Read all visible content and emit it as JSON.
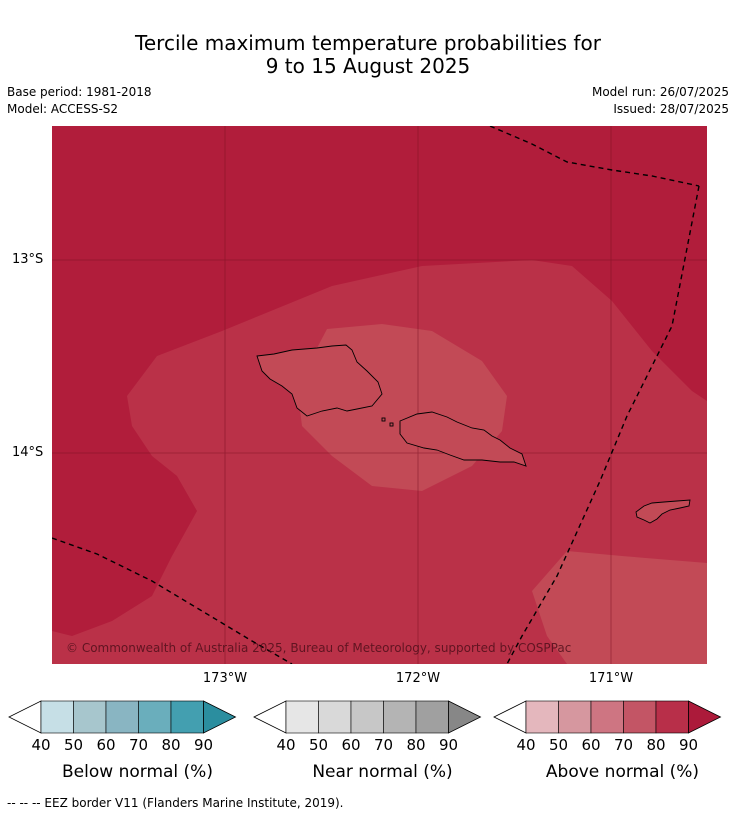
{
  "title": {
    "line1": "Tercile maximum temperature probabilities for",
    "line2": "9 to 15 August 2025"
  },
  "meta": {
    "base_period": "Base period: 1981-2018",
    "model": "Model: ACCESS-S2",
    "model_run": "Model run: 26/07/2025",
    "issued": "Issued: 28/07/2025"
  },
  "map": {
    "lat_labels": [
      "13°S",
      "14°S"
    ],
    "lon_labels": [
      "173°W",
      "172°W",
      "171°W"
    ],
    "copyright": "© Commonwealth of Australia 2025, Bureau of Meteorology, supported by COSPPac",
    "colors": {
      "above_90": "#b11d3b",
      "above_80": "#ba3148",
      "above_70": "#c24a56",
      "ocean_grid": "#7a1022"
    }
  },
  "colorbars": [
    {
      "label": "Below normal (%)",
      "ticks": [
        "40",
        "50",
        "60",
        "70",
        "80",
        "90"
      ],
      "colors": [
        "#c6dfe6",
        "#a7c6cd",
        "#89b5c2",
        "#6aaebc",
        "#439fb0",
        "#2b8e9f"
      ]
    },
    {
      "label": "Near normal (%)",
      "ticks": [
        "40",
        "50",
        "60",
        "70",
        "80",
        "90"
      ],
      "colors": [
        "#e6e6e6",
        "#d9d9d9",
        "#c7c7c7",
        "#b4b4b4",
        "#a0a0a0",
        "#878787"
      ]
    },
    {
      "label": "Above normal (%)",
      "ticks": [
        "40",
        "50",
        "60",
        "70",
        "80",
        "90"
      ],
      "colors": [
        "#e4b7bd",
        "#d6979f",
        "#ce7582",
        "#c35565",
        "#b82f49",
        "#ac1a3a"
      ]
    }
  ],
  "footer": {
    "eez_legend": "--  --  -- EEZ border V11 (Flanders Marine Institute, 2019)."
  }
}
